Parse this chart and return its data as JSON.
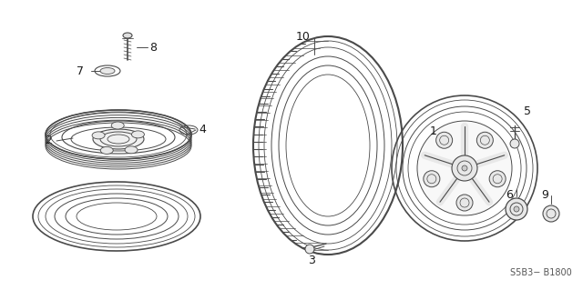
{
  "bg_color": "#ffffff",
  "line_color": "#4a4a4a",
  "text_color": "#1a1a1a",
  "fig_width": 6.4,
  "fig_height": 3.19,
  "dpi": 100,
  "watermark": "S5B3− B1800"
}
